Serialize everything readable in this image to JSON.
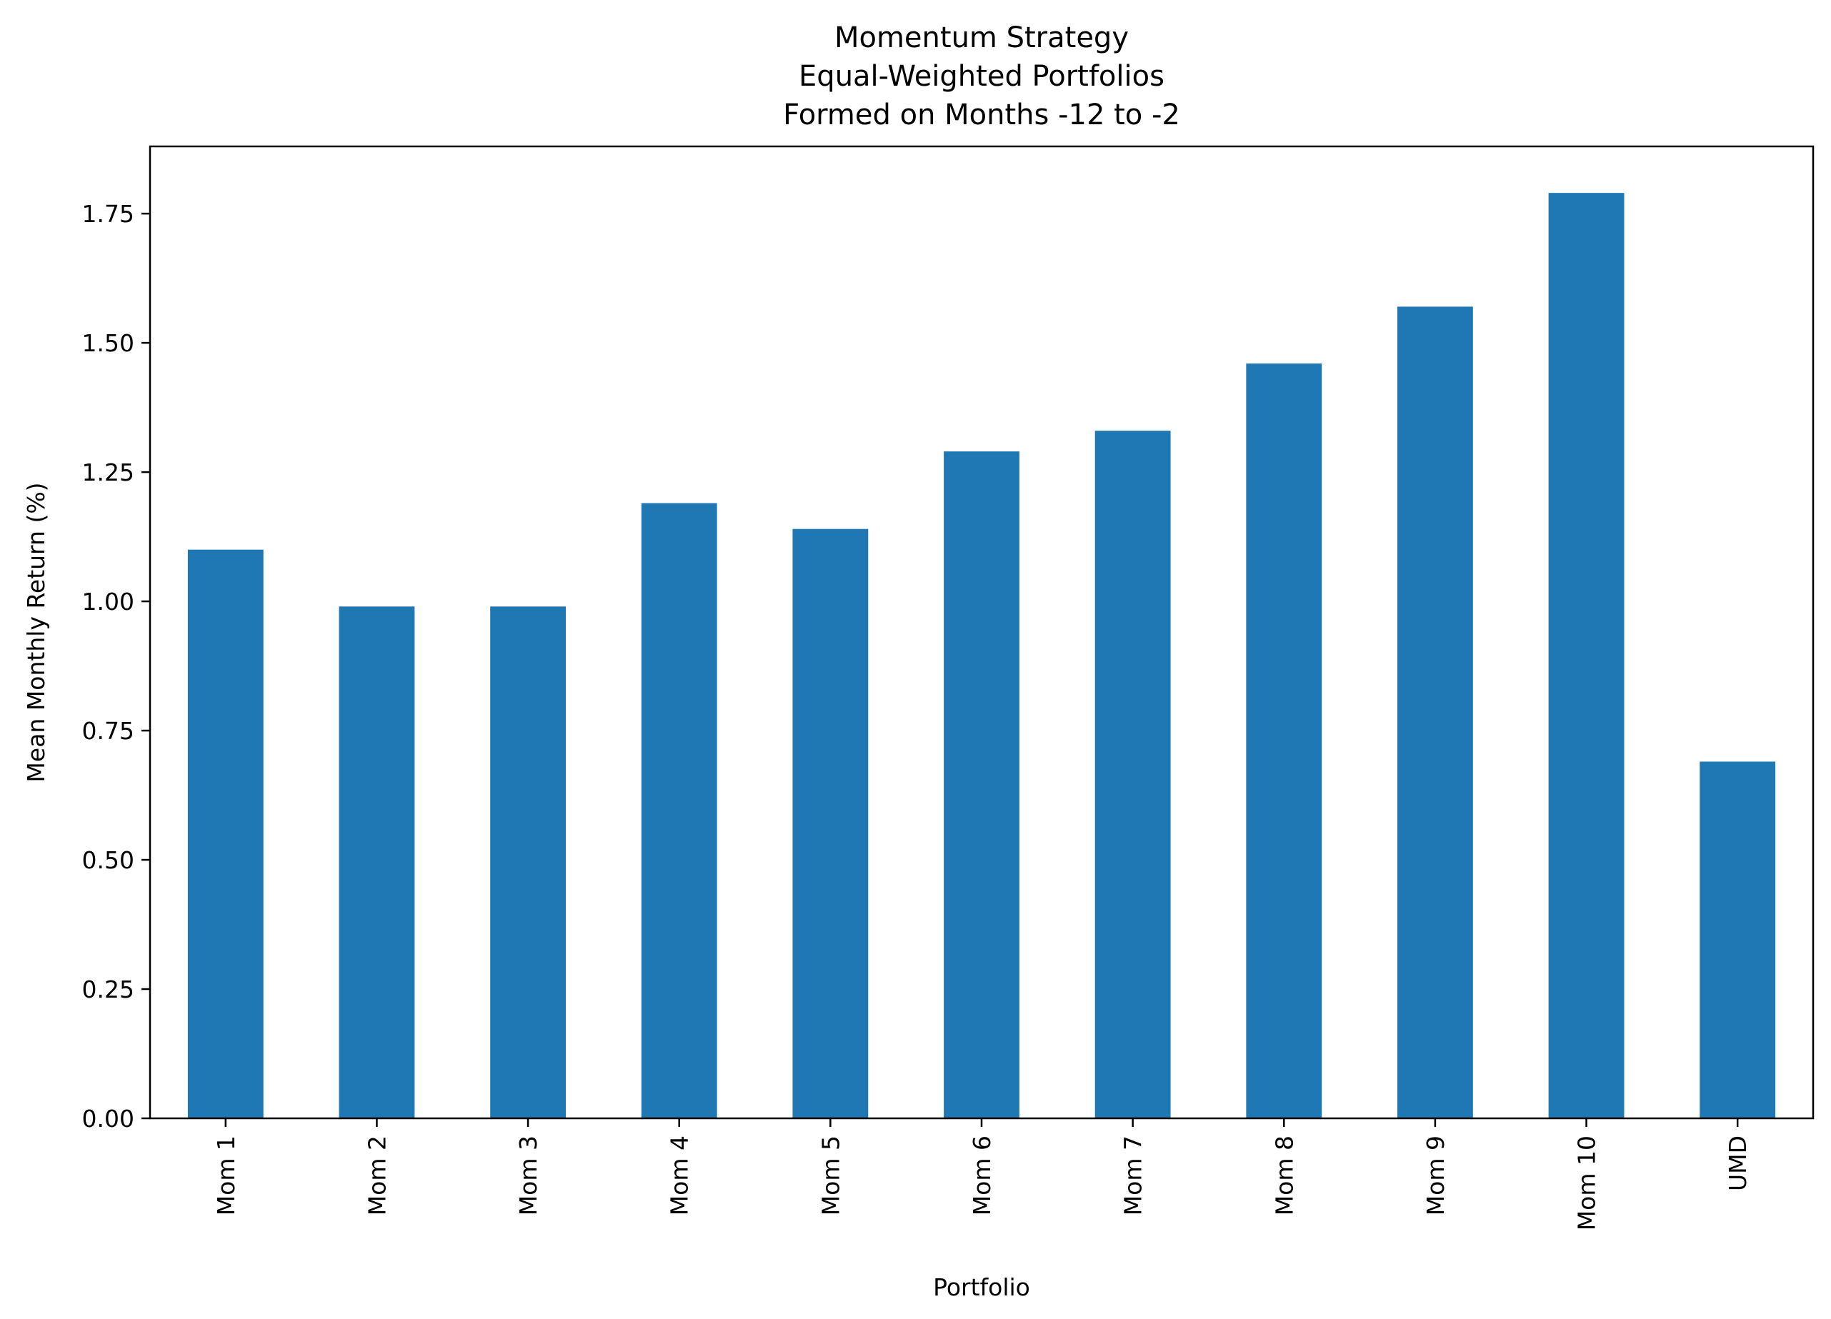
{
  "chart_data": {
    "type": "bar",
    "title": [
      "Momentum Strategy",
      "Equal-Weighted Portfolios",
      "Formed on Months -12 to -2"
    ],
    "xlabel": "Portfolio",
    "ylabel": "Mean Monthly Return (%)",
    "categories": [
      "Mom 1",
      "Mom 2",
      "Mom 3",
      "Mom 4",
      "Mom 5",
      "Mom 6",
      "Mom 7",
      "Mom 8",
      "Mom 9",
      "Mom 10",
      "UMD"
    ],
    "values": [
      1.1,
      0.99,
      0.99,
      1.19,
      1.14,
      1.29,
      1.33,
      1.46,
      1.57,
      1.79,
      0.69
    ],
    "yticks": [
      "0.00",
      "0.25",
      "0.50",
      "0.75",
      "1.00",
      "1.25",
      "1.50",
      "1.75"
    ],
    "ylim": [
      0,
      1.88
    ],
    "bar_color": "#1f77b4",
    "grid": false,
    "legend": "none"
  }
}
